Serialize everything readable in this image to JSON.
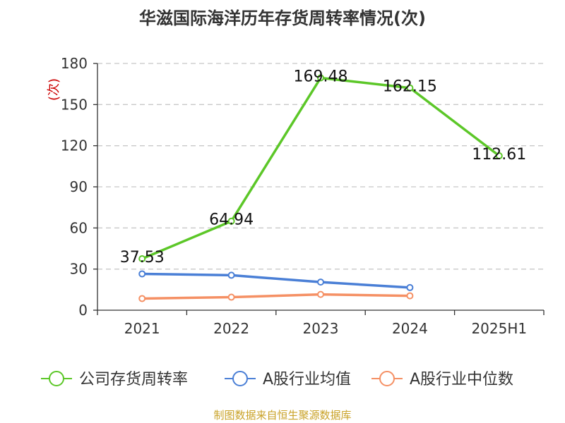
{
  "chart_data": {
    "type": "line",
    "title": "华滋国际海洋历年存货周转率情况(次)",
    "ylabel": "(次)",
    "xlabel": "",
    "categories": [
      "2021",
      "2022",
      "2023",
      "2024",
      "2025H1"
    ],
    "ylim": [
      0,
      180
    ],
    "yticks": [
      0,
      30,
      60,
      90,
      120,
      150,
      180
    ],
    "grid": true,
    "legend_position": "bottom",
    "series": [
      {
        "name": "公司存货周转率",
        "color": "#5cc728",
        "values": [
          37.53,
          64.94,
          169.48,
          162.15,
          112.61
        ],
        "labels": [
          "37.53",
          "64.94",
          "169.48",
          "162.15",
          "112.61"
        ]
      },
      {
        "name": "A股行业均值",
        "color": "#4a7fd6",
        "values": [
          26.5,
          25.5,
          20.5,
          16.5,
          null
        ]
      },
      {
        "name": "A股行业中位数",
        "color": "#f59064",
        "values": [
          8.5,
          9.5,
          11.5,
          10.5,
          null
        ]
      }
    ],
    "source": "制图数据来自恒生聚源数据库"
  }
}
